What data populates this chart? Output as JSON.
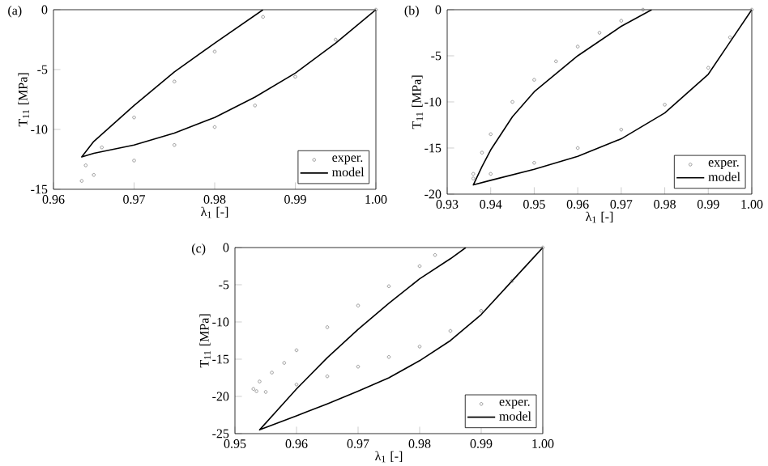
{
  "chart_data": [
    {
      "type": "line",
      "title": "(a)",
      "xlabel": "λ$_{1}$ [-]",
      "ylabel": "T$_{11}$ [MPa]",
      "xlim": [
        0.96,
        1.0
      ],
      "ylim": [
        -15,
        0
      ],
      "xticks": [
        {
          "value": 0.96,
          "label": "0.96"
        },
        {
          "value": 0.97,
          "label": "0.97"
        },
        {
          "value": 0.98,
          "label": "0.98"
        },
        {
          "value": 0.99,
          "label": "0.99"
        },
        {
          "value": 1.0,
          "label": "1.00"
        }
      ],
      "yticks": [
        -15,
        -10,
        -5,
        0
      ],
      "legend": "bottom right",
      "series": [
        {
          "name": "exper.",
          "type": "scatter",
          "marker": "circle",
          "color": "#808080",
          "x": [
            1.0,
            0.995,
            0.99,
            0.985,
            0.98,
            0.975,
            0.97,
            0.965,
            0.9635,
            0.964,
            0.966,
            0.97,
            0.975,
            0.98,
            0.986
          ],
          "values": [
            0,
            -2.5,
            -5.6,
            -8.0,
            -9.8,
            -11.3,
            -12.6,
            -13.8,
            -14.3,
            -13.0,
            -11.5,
            -9.0,
            -6.0,
            -3.5,
            -0.6
          ]
        },
        {
          "name": "model",
          "color": "#000000",
          "x": [
            1.0,
            0.995,
            0.99,
            0.985,
            0.98,
            0.975,
            0.97,
            0.965,
            0.9635,
            0.965,
            0.97,
            0.975,
            0.98,
            0.986
          ],
          "values": [
            0,
            -2.8,
            -5.3,
            -7.3,
            -9.0,
            -10.3,
            -11.3,
            -12.0,
            -12.3,
            -11.0,
            -8.0,
            -5.2,
            -2.8,
            0
          ]
        }
      ]
    },
    {
      "type": "line",
      "title": "(b)",
      "xlabel": "λ$_{1}$ [-]",
      "ylabel": "T$_{11}$ [MPa]",
      "xlim": [
        0.93,
        1.0
      ],
      "ylim": [
        -20,
        0
      ],
      "xticks": [
        {
          "value": 0.93,
          "label": "0.93"
        },
        {
          "value": 0.94,
          "label": "0.94"
        },
        {
          "value": 0.95,
          "label": "0.95"
        },
        {
          "value": 0.96,
          "label": "0.96"
        },
        {
          "value": 0.97,
          "label": "0.97"
        },
        {
          "value": 0.98,
          "label": "0.98"
        },
        {
          "value": 0.99,
          "label": "0.99"
        },
        {
          "value": 1.0,
          "label": "1.00"
        }
      ],
      "yticks": [
        -20,
        -15,
        -10,
        -5,
        0
      ],
      "legend": "bottom right",
      "series": [
        {
          "name": "exper.",
          "type": "scatter",
          "marker": "circle",
          "color": "#808080",
          "x": [
            1.0,
            0.995,
            0.99,
            0.98,
            0.97,
            0.96,
            0.95,
            0.94,
            0.936,
            0.936,
            0.938,
            0.94,
            0.945,
            0.95,
            0.955,
            0.96,
            0.965,
            0.97,
            0.975
          ],
          "values": [
            0,
            -3.0,
            -6.3,
            -10.3,
            -13.0,
            -15.0,
            -16.6,
            -17.8,
            -18.3,
            -17.8,
            -15.5,
            -13.5,
            -10.0,
            -7.6,
            -5.6,
            -4.0,
            -2.5,
            -1.2,
            0
          ]
        },
        {
          "name": "model",
          "color": "#000000",
          "x": [
            1.0,
            0.995,
            0.99,
            0.98,
            0.97,
            0.96,
            0.95,
            0.94,
            0.936,
            0.938,
            0.94,
            0.945,
            0.95,
            0.96,
            0.97,
            0.977
          ],
          "values": [
            0,
            -3.5,
            -7.0,
            -11.2,
            -14.0,
            -15.9,
            -17.3,
            -18.5,
            -19.0,
            -17.0,
            -15.2,
            -11.6,
            -8.9,
            -5.0,
            -1.8,
            0
          ]
        }
      ]
    },
    {
      "type": "line",
      "title": "(c)",
      "xlabel": "λ$_{1}$ [-]",
      "ylabel": "T$_{11}$ [MPa]",
      "xlim": [
        0.95,
        1.0
      ],
      "ylim": [
        -25,
        0
      ],
      "xticks": [
        {
          "value": 0.95,
          "label": "0.95"
        },
        {
          "value": 0.96,
          "label": "0.96"
        },
        {
          "value": 0.97,
          "label": "0.97"
        },
        {
          "value": 0.98,
          "label": "0.98"
        },
        {
          "value": 0.99,
          "label": "0.99"
        },
        {
          "value": 1.0,
          "label": "1.00"
        }
      ],
      "yticks": [
        -25,
        -20,
        -15,
        -10,
        -5,
        0
      ],
      "legend": "bottom right",
      "series": [
        {
          "name": "exper.",
          "type": "scatter",
          "marker": "circle",
          "color": "#808080",
          "x": [
            1.0,
            0.995,
            0.99,
            0.985,
            0.98,
            0.975,
            0.97,
            0.965,
            0.96,
            0.955,
            0.9535,
            0.953,
            0.954,
            0.956,
            0.958,
            0.96,
            0.965,
            0.97,
            0.975,
            0.98,
            0.9825
          ],
          "values": [
            0,
            -4.5,
            -8.5,
            -11.2,
            -13.3,
            -14.7,
            -16.0,
            -17.3,
            -18.4,
            -19.4,
            -19.3,
            -19.0,
            -18.0,
            -16.8,
            -15.5,
            -13.8,
            -10.7,
            -7.8,
            -5.2,
            -2.5,
            -1.0
          ]
        },
        {
          "name": "model",
          "color": "#000000",
          "x": [
            1.0,
            0.995,
            0.99,
            0.985,
            0.98,
            0.975,
            0.97,
            0.965,
            0.96,
            0.954,
            0.96,
            0.965,
            0.97,
            0.975,
            0.98,
            0.985,
            0.9875
          ],
          "values": [
            0,
            -4.5,
            -9.0,
            -12.5,
            -15.2,
            -17.5,
            -19.3,
            -21.0,
            -22.6,
            -24.5,
            -19.0,
            -14.8,
            -11.0,
            -7.5,
            -4.2,
            -1.5,
            0
          ]
        }
      ]
    }
  ]
}
